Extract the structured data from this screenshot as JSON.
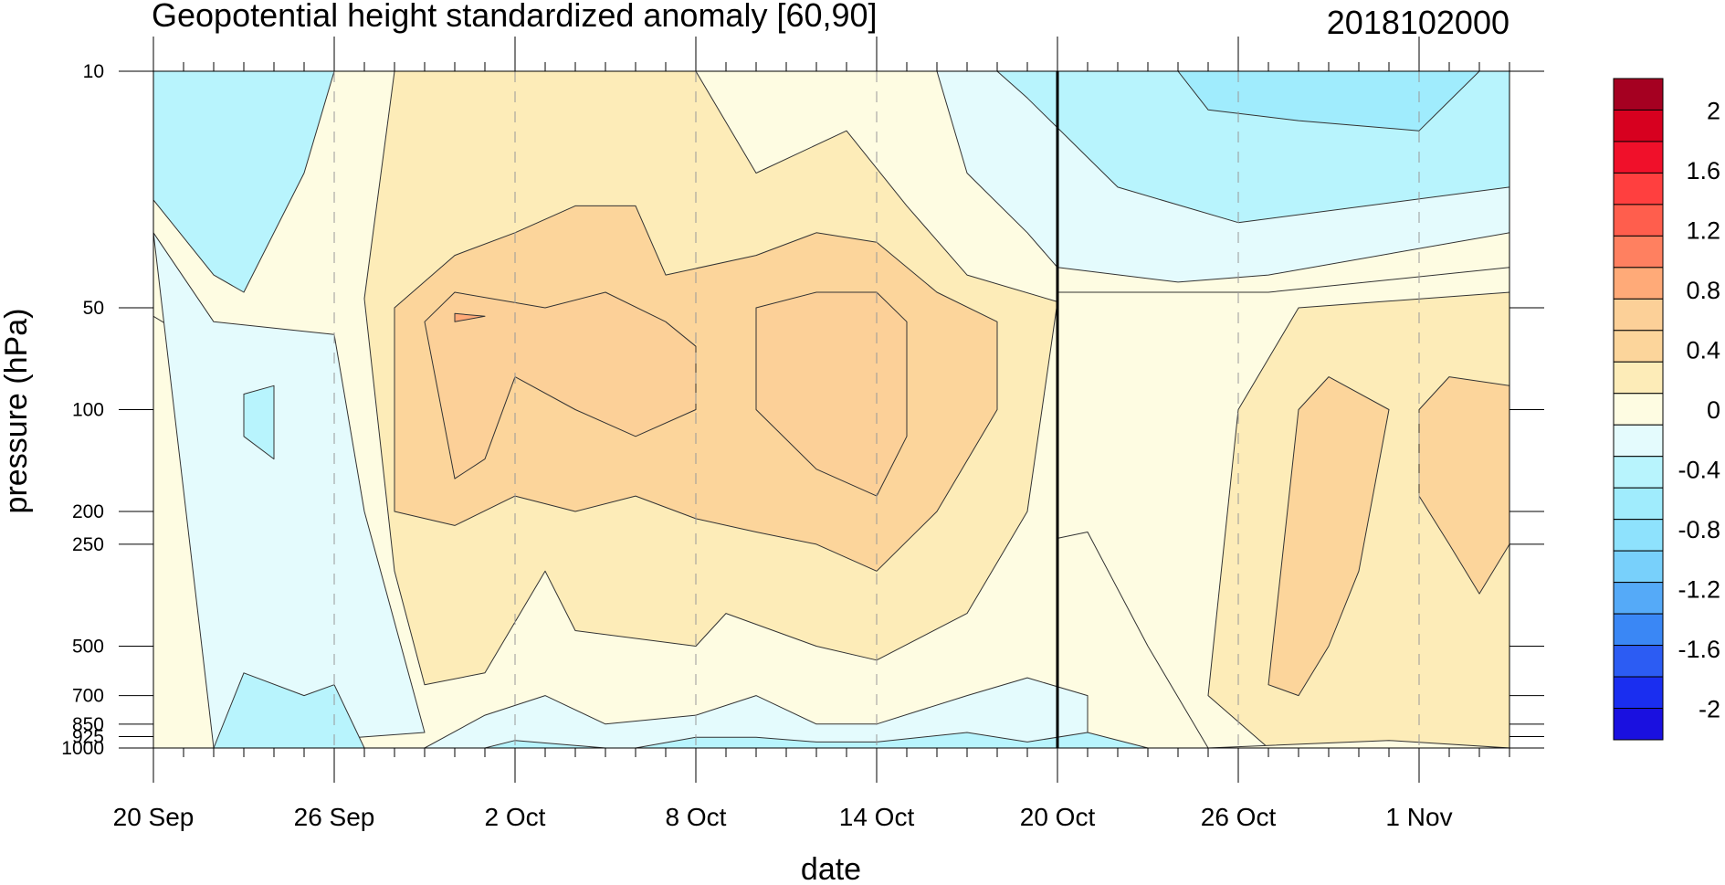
{
  "chart_data": {
    "type": "heatmap",
    "title": "Geopotential height standardized anomaly [60,90]",
    "subtitle": "2018102000",
    "xlabel": "date",
    "ylabel": "pressure (hPa)",
    "x_range": [
      "2018-09-20",
      "2018-11-04"
    ],
    "y_scale": "log",
    "y_range": [
      1000,
      10
    ],
    "x_ticks": [
      {
        "label": "20 Sep",
        "date": "2018-09-20"
      },
      {
        "label": "26 Sep",
        "date": "2018-09-26"
      },
      {
        "label": "2 Oct",
        "date": "2018-10-02"
      },
      {
        "label": "8 Oct",
        "date": "2018-10-08"
      },
      {
        "label": "14 Oct",
        "date": "2018-10-14"
      },
      {
        "label": "20 Oct",
        "date": "2018-10-20"
      },
      {
        "label": "26 Oct",
        "date": "2018-10-26"
      },
      {
        "label": "1 Nov",
        "date": "2018-11-01"
      }
    ],
    "y_ticks": [
      {
        "label": "10",
        "value": 10
      },
      {
        "label": "50",
        "value": 50
      },
      {
        "label": "100",
        "value": 100
      },
      {
        "label": "200",
        "value": 200
      },
      {
        "label": "250",
        "value": 250
      },
      {
        "label": "500",
        "value": 500
      },
      {
        "label": "700",
        "value": 700
      },
      {
        "label": "850",
        "value": 850
      },
      {
        "label": "925",
        "value": 925
      },
      {
        "label": "1000",
        "value": 1000
      }
    ],
    "vertical_marker": "2018-10-20",
    "colorbar": {
      "levels": [
        -2,
        -1.8,
        -1.6,
        -1.4,
        -1.2,
        -1,
        -0.8,
        -0.6,
        -0.4,
        -0.2,
        0,
        0.2,
        0.4,
        0.6,
        0.8,
        1,
        1.2,
        1.4,
        1.6,
        1.8,
        2
      ],
      "labels": [
        "2",
        "1.6",
        "1.2",
        "0.8",
        "0.4",
        "0",
        "-0.4",
        "-0.8",
        "-1.2",
        "-1.6",
        "-2"
      ],
      "label_values": [
        2,
        1.6,
        1.2,
        0.8,
        0.4,
        0,
        -0.4,
        -0.8,
        -1.2,
        -1.6,
        -2
      ],
      "colors_top_to_bottom": [
        "#a50021",
        "#d7001f",
        "#f0102a",
        "#ff3f3f",
        "#ff5e4d",
        "#ff8060",
        "#ffaa78",
        "#fcd098",
        "#fcd59b",
        "#fdecb8",
        "#fefce2",
        "#e4fbfd",
        "#b8f4fd",
        "#a0ecfd",
        "#8ee2fd",
        "#78d0fb",
        "#55aaf8",
        "#3a87f5",
        "#2c5cf3",
        "#1a2ef0",
        "#1a10e0"
      ]
    },
    "bands": [
      {
        "level": 0.0,
        "color": "#fefce2",
        "points": [
          [
            "2018-09-20",
            53
          ],
          [
            "2018-09-21",
            60
          ],
          [
            "2018-09-22",
            300
          ],
          [
            "2018-09-22",
            1000
          ],
          [
            "2018-09-20",
            1000
          ]
        ]
      },
      {
        "level": -0.2,
        "color": "#e4fbfd",
        "points": [
          [
            "2018-09-20",
            30
          ],
          [
            "2018-09-22",
            55
          ],
          [
            "2018-09-26",
            60
          ],
          [
            "2018-09-27",
            200
          ],
          [
            "2018-09-29",
            900
          ],
          [
            "2018-09-22",
            1000
          ]
        ]
      },
      {
        "level": -0.4,
        "color": "#b8f4fd",
        "points": [
          [
            "2018-09-20",
            10
          ],
          [
            "2018-09-26",
            10
          ],
          [
            "2018-09-25",
            20
          ],
          [
            "2018-09-23",
            45
          ],
          [
            "2018-09-22",
            40
          ],
          [
            "2018-09-20",
            24
          ]
        ]
      },
      {
        "level": -0.4,
        "color": "#b8f4fd",
        "points": [
          [
            "2018-09-23",
            90
          ],
          [
            "2018-09-24",
            85
          ],
          [
            "2018-09-24",
            140
          ],
          [
            "2018-09-23",
            120
          ]
        ]
      },
      {
        "level": -0.4,
        "color": "#b8f4fd",
        "points": [
          [
            "2018-09-22",
            1000
          ],
          [
            "2018-09-23",
            600
          ],
          [
            "2018-09-25",
            700
          ],
          [
            "2018-09-26",
            650
          ],
          [
            "2018-09-27",
            1000
          ]
        ]
      },
      {
        "level": 0.2,
        "color": "#fdecb8",
        "points": [
          [
            "2018-09-27",
            47
          ],
          [
            "2018-09-28",
            10
          ],
          [
            "2018-10-08",
            10
          ],
          [
            "2018-10-10",
            20
          ],
          [
            "2018-10-13",
            15
          ],
          [
            "2018-10-15",
            25
          ],
          [
            "2018-10-17",
            40
          ],
          [
            "2018-10-20",
            48
          ],
          [
            "2018-10-19",
            200
          ],
          [
            "2018-10-17",
            400
          ],
          [
            "2018-10-14",
            550
          ],
          [
            "2018-10-12",
            500
          ],
          [
            "2018-10-09",
            400
          ],
          [
            "2018-10-08",
            500
          ],
          [
            "2018-10-04",
            450
          ],
          [
            "2018-10-03",
            300
          ],
          [
            "2018-10-01",
            600
          ],
          [
            "2018-09-29",
            650
          ],
          [
            "2018-09-28",
            300
          ]
        ]
      },
      {
        "level": 0.4,
        "color": "#fcd59b",
        "points": [
          [
            "2018-09-28",
            50
          ],
          [
            "2018-09-30",
            35
          ],
          [
            "2018-10-02",
            30
          ],
          [
            "2018-10-04",
            25
          ],
          [
            "2018-10-06",
            25
          ],
          [
            "2018-10-07",
            40
          ],
          [
            "2018-10-10",
            35
          ],
          [
            "2018-10-12",
            30
          ],
          [
            "2018-10-14",
            32
          ],
          [
            "2018-10-16",
            45
          ],
          [
            "2018-10-18",
            55
          ],
          [
            "2018-10-18",
            100
          ],
          [
            "2018-10-16",
            200
          ],
          [
            "2018-10-14",
            300
          ],
          [
            "2018-10-12",
            250
          ],
          [
            "2018-10-10",
            230
          ],
          [
            "2018-10-08",
            210
          ],
          [
            "2018-10-06",
            180
          ],
          [
            "2018-10-04",
            200
          ],
          [
            "2018-10-02",
            180
          ],
          [
            "2018-09-30",
            220
          ],
          [
            "2018-09-28",
            200
          ]
        ]
      },
      {
        "level": 0.6,
        "color": "#fcd098",
        "points": [
          [
            "2018-09-29",
            55
          ],
          [
            "2018-09-30",
            45
          ],
          [
            "2018-10-03",
            50
          ],
          [
            "2018-10-05",
            45
          ],
          [
            "2018-10-07",
            55
          ],
          [
            "2018-10-08",
            65
          ],
          [
            "2018-10-08",
            100
          ],
          [
            "2018-10-06",
            120
          ],
          [
            "2018-10-04",
            100
          ],
          [
            "2018-10-02",
            80
          ],
          [
            "2018-10-01",
            140
          ],
          [
            "2018-09-30",
            160
          ]
        ]
      },
      {
        "level": 0.6,
        "color": "#fcd098",
        "points": [
          [
            "2018-10-10",
            50
          ],
          [
            "2018-10-12",
            45
          ],
          [
            "2018-10-14",
            45
          ],
          [
            "2018-10-15",
            55
          ],
          [
            "2018-10-15",
            120
          ],
          [
            "2018-10-14",
            180
          ],
          [
            "2018-10-12",
            150
          ],
          [
            "2018-10-10",
            100
          ]
        ]
      },
      {
        "level": 0.8,
        "color": "#ffaa78",
        "points": [
          [
            "2018-09-30",
            52
          ],
          [
            "2018-10-01",
            53
          ],
          [
            "2018-09-30",
            55
          ]
        ]
      },
      {
        "level": -0.2,
        "color": "#e4fbfd",
        "points": [
          [
            "2018-10-16",
            10
          ],
          [
            "2018-10-20",
            10
          ],
          [
            "2018-11-04",
            10
          ],
          [
            "2018-11-04",
            30
          ],
          [
            "2018-10-27",
            40
          ],
          [
            "2018-10-24",
            42
          ],
          [
            "2018-10-20",
            38
          ],
          [
            "2018-10-19",
            30
          ],
          [
            "2018-10-17",
            20
          ]
        ]
      },
      {
        "level": -0.4,
        "color": "#b8f4fd",
        "points": [
          [
            "2018-10-18",
            10
          ],
          [
            "2018-11-04",
            10
          ],
          [
            "2018-11-04",
            22
          ],
          [
            "2018-10-26",
            28
          ],
          [
            "2018-10-22",
            22
          ],
          [
            "2018-10-19",
            12
          ]
        ]
      },
      {
        "level": -0.6,
        "color": "#a0ecfd",
        "points": [
          [
            "2018-10-24",
            10
          ],
          [
            "2018-11-03",
            10
          ],
          [
            "2018-11-01",
            15
          ],
          [
            "2018-10-28",
            14
          ],
          [
            "2018-10-25",
            13
          ]
        ]
      },
      {
        "level": 0.0,
        "color": "#fefce2",
        "points": [
          [
            "2018-10-20",
            45
          ],
          [
            "2018-10-27",
            45
          ],
          [
            "2018-11-04",
            38
          ],
          [
            "2018-11-04",
            1000
          ],
          [
            "2018-10-25",
            1000
          ],
          [
            "2018-10-23",
            500
          ],
          [
            "2018-10-21",
            230
          ],
          [
            "2018-10-20",
            240
          ]
        ]
      },
      {
        "level": 0.2,
        "color": "#fdecb8",
        "points": [
          [
            "2018-10-26",
            100
          ],
          [
            "2018-10-28",
            50
          ],
          [
            "2018-11-04",
            45
          ],
          [
            "2018-11-04",
            1000
          ],
          [
            "2018-10-31",
            1000
          ],
          [
            "2018-10-27",
            1000
          ],
          [
            "2018-10-25",
            700
          ]
        ]
      },
      {
        "level": 0.4,
        "color": "#fcd59b",
        "points": [
          [
            "2018-10-28",
            100
          ],
          [
            "2018-10-29",
            80
          ],
          [
            "2018-10-31",
            100
          ],
          [
            "2018-10-30",
            300
          ],
          [
            "2018-10-29",
            500
          ],
          [
            "2018-10-28",
            700
          ],
          [
            "2018-10-27",
            650
          ]
        ]
      },
      {
        "level": 0.4,
        "color": "#fcd59b",
        "points": [
          [
            "2018-11-01",
            100
          ],
          [
            "2018-11-02",
            80
          ],
          [
            "2018-11-04",
            85
          ],
          [
            "2018-11-04",
            250
          ],
          [
            "2018-11-03",
            350
          ],
          [
            "2018-11-02",
            250
          ],
          [
            "2018-11-01",
            180
          ]
        ]
      },
      {
        "level": -0.2,
        "color": "#e4fbfd",
        "points": [
          [
            "2018-09-29",
            1000
          ],
          [
            "2018-10-01",
            800
          ],
          [
            "2018-10-03",
            700
          ],
          [
            "2018-10-05",
            850
          ],
          [
            "2018-10-08",
            800
          ],
          [
            "2018-10-10",
            700
          ],
          [
            "2018-10-12",
            850
          ],
          [
            "2018-10-14",
            850
          ],
          [
            "2018-10-17",
            700
          ],
          [
            "2018-10-19",
            620
          ],
          [
            "2018-10-21",
            700
          ],
          [
            "2018-10-21",
            1000
          ]
        ]
      },
      {
        "level": -0.4,
        "color": "#b8f4fd",
        "points": [
          [
            "2018-10-01",
            1000
          ],
          [
            "2018-10-02",
            950
          ],
          [
            "2018-10-05",
            1000
          ]
        ]
      },
      {
        "level": -0.4,
        "color": "#b8f4fd",
        "points": [
          [
            "2018-10-06",
            1000
          ],
          [
            "2018-10-08",
            930
          ],
          [
            "2018-10-10",
            930
          ],
          [
            "2018-10-12",
            960
          ],
          [
            "2018-10-14",
            960
          ],
          [
            "2018-10-17",
            900
          ],
          [
            "2018-10-19",
            960
          ],
          [
            "2018-10-21",
            900
          ],
          [
            "2018-10-23",
            1000
          ]
        ]
      },
      {
        "level": 0.0,
        "color": "#fefce2",
        "points": [
          [
            "2018-10-25",
            1000
          ],
          [
            "2018-10-31",
            950
          ],
          [
            "2018-11-04",
            1000
          ]
        ]
      }
    ]
  }
}
